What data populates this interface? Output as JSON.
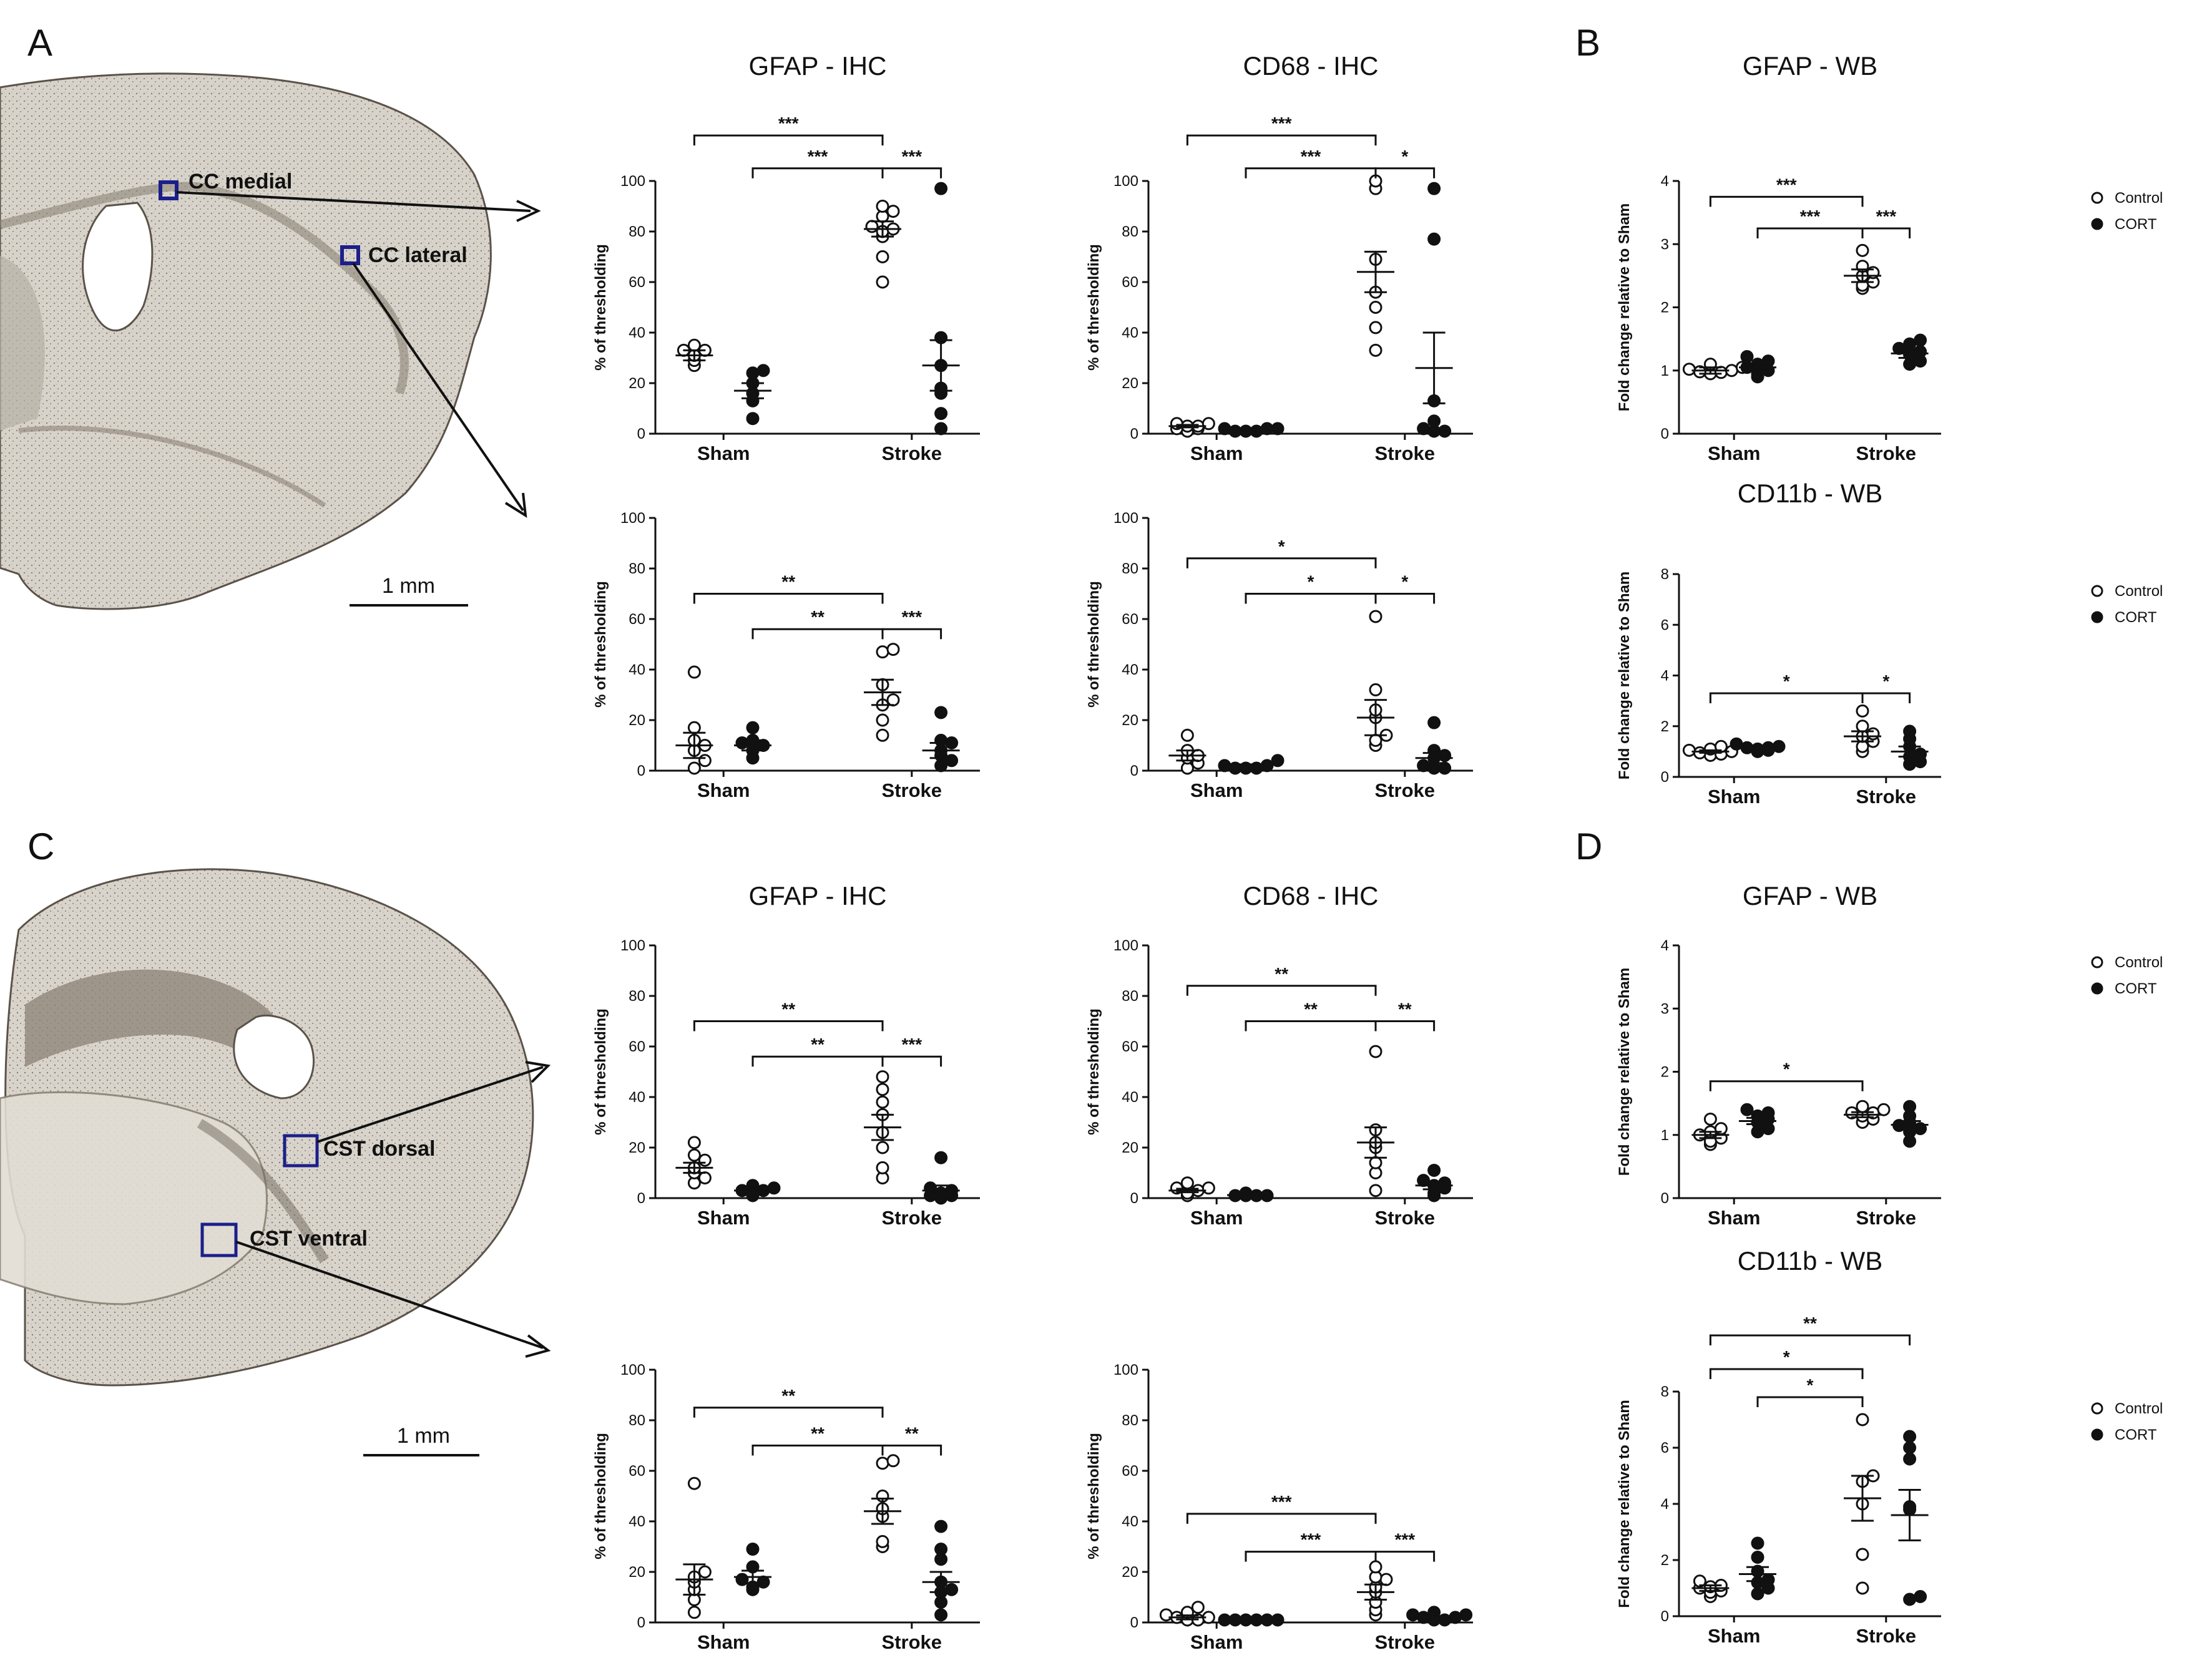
{
  "panel_letters": {
    "a": "A",
    "b": "B",
    "c": "C",
    "d": "D"
  },
  "brain": {
    "top": {
      "cc_medial": "CC medial",
      "cc_lateral": "CC lateral",
      "scale": "1 mm"
    },
    "bottom": {
      "cst_dorsal": "CST dorsal",
      "cst_ventral": "CST ventral",
      "scale": "1 mm"
    }
  },
  "legend": {
    "control": "Control",
    "cort": "CORT"
  },
  "chart_data": [
    {
      "id": "a1",
      "type": "scatter",
      "title": "GFAP - IHC",
      "ylabel": "% of thresholding",
      "ylim": [
        0,
        100
      ],
      "ticks": [
        0,
        20,
        40,
        60,
        80,
        100
      ],
      "categories": [
        "Sham",
        "Stroke"
      ],
      "series": [
        {
          "name": "Sham Control",
          "values": [
            27,
            29,
            31,
            33,
            33,
            35
          ],
          "mean": 31,
          "sem": 2
        },
        {
          "name": "Sham CORT",
          "values": [
            6,
            13,
            16,
            20,
            24,
            25
          ],
          "mean": 17,
          "sem": 3
        },
        {
          "name": "Stroke Control",
          "values": [
            60,
            70,
            78,
            80,
            81,
            82,
            86,
            88,
            90
          ],
          "mean": 81,
          "sem": 3
        },
        {
          "name": "Stroke CORT",
          "values": [
            2,
            8,
            16,
            18,
            27,
            38,
            97
          ],
          "mean": 27,
          "sem": 10
        }
      ],
      "brackets": [
        {
          "from": 0,
          "to": 2,
          "label": "***",
          "y": 118
        },
        {
          "from": 1,
          "to": 2,
          "label": "***",
          "y": 105
        },
        {
          "from": 2,
          "to": 3,
          "label": "***",
          "y": 105
        }
      ]
    },
    {
      "id": "a2",
      "type": "scatter",
      "title": "CD68 - IHC",
      "ylabel": "% of thresholding",
      "ylim": [
        0,
        100
      ],
      "ticks": [
        0,
        20,
        40,
        60,
        80,
        100
      ],
      "categories": [
        "Sham",
        "Stroke"
      ],
      "series": [
        {
          "name": "Sham Control",
          "values": [
            1,
            2,
            2,
            3,
            3,
            4,
            4
          ],
          "mean": 3,
          "sem": 0.5
        },
        {
          "name": "Sham CORT",
          "values": [
            1,
            1,
            1,
            2,
            2,
            2
          ],
          "mean": 1.5,
          "sem": 0.3
        },
        {
          "name": "Stroke Control",
          "values": [
            33,
            42,
            50,
            56,
            69,
            97,
            100
          ],
          "mean": 64,
          "sem": 8
        },
        {
          "name": "Stroke CORT",
          "values": [
            1,
            1,
            2,
            5,
            13,
            77,
            97
          ],
          "mean": 26,
          "sem": 14
        }
      ],
      "brackets": [
        {
          "from": 0,
          "to": 2,
          "label": "***",
          "y": 118
        },
        {
          "from": 1,
          "to": 2,
          "label": "***",
          "y": 105
        },
        {
          "from": 2,
          "to": 3,
          "label": "*",
          "y": 105
        }
      ]
    },
    {
      "id": "b1",
      "type": "scatter",
      "title": "GFAP - WB",
      "ylabel": "Fold change relative to Sham",
      "ylim": [
        0,
        4
      ],
      "ticks": [
        0,
        1,
        2,
        3,
        4
      ],
      "categories": [
        "Sham",
        "Stroke"
      ],
      "series": [
        {
          "name": "Sham Control",
          "values": [
            0.95,
            0.97,
            0.98,
            1.0,
            1.02,
            1.05,
            1.1
          ],
          "mean": 1.0,
          "sem": 0.05
        },
        {
          "name": "Sham CORT",
          "values": [
            0.9,
            0.95,
            1.0,
            1.05,
            1.1,
            1.15,
            1.22
          ],
          "mean": 1.05,
          "sem": 0.06
        },
        {
          "name": "Stroke Control",
          "values": [
            2.3,
            2.35,
            2.4,
            2.5,
            2.55,
            2.65,
            2.9
          ],
          "mean": 2.5,
          "sem": 0.1
        },
        {
          "name": "Stroke CORT",
          "values": [
            1.1,
            1.15,
            1.25,
            1.3,
            1.35,
            1.42,
            1.48
          ],
          "mean": 1.27,
          "sem": 0.07
        }
      ],
      "brackets": [
        {
          "from": 0,
          "to": 2,
          "label": "***",
          "y": 3.75
        },
        {
          "from": 1,
          "to": 2,
          "label": "***",
          "y": 3.25
        },
        {
          "from": 2,
          "to": 3,
          "label": "***",
          "y": 3.25
        }
      ]
    },
    {
      "id": "a3",
      "type": "scatter",
      "title": "",
      "ylabel": "% of thresholding",
      "ylim": [
        0,
        100
      ],
      "ticks": [
        0,
        20,
        40,
        60,
        80,
        100
      ],
      "categories": [
        "Sham",
        "Stroke"
      ],
      "series": [
        {
          "name": "Sham Control",
          "values": [
            1,
            4,
            8,
            10,
            12,
            17,
            39
          ],
          "mean": 10,
          "sem": 5
        },
        {
          "name": "Sham CORT",
          "values": [
            5,
            8,
            10,
            11,
            12,
            17
          ],
          "mean": 10,
          "sem": 2
        },
        {
          "name": "Stroke Control",
          "values": [
            14,
            20,
            26,
            28,
            34,
            47,
            48
          ],
          "mean": 31,
          "sem": 5
        },
        {
          "name": "Stroke CORT",
          "values": [
            2,
            4,
            6,
            8,
            11,
            12,
            23
          ],
          "mean": 8,
          "sem": 3
        }
      ],
      "brackets": [
        {
          "from": 0,
          "to": 2,
          "label": "**",
          "y": 70
        },
        {
          "from": 1,
          "to": 2,
          "label": "**",
          "y": 56
        },
        {
          "from": 2,
          "to": 3,
          "label": "***",
          "y": 56
        }
      ]
    },
    {
      "id": "a4",
      "type": "scatter",
      "title": "",
      "ylabel": "% of thresholding",
      "ylim": [
        0,
        100
      ],
      "ticks": [
        0,
        20,
        40,
        60,
        80,
        100
      ],
      "categories": [
        "Sham",
        "Stroke"
      ],
      "series": [
        {
          "name": "Sham Control",
          "values": [
            1,
            3,
            5,
            6,
            8,
            14
          ],
          "mean": 6,
          "sem": 2
        },
        {
          "name": "Sham CORT",
          "values": [
            1,
            1,
            1,
            2,
            2,
            4
          ],
          "mean": 2,
          "sem": 0.5
        },
        {
          "name": "Stroke Control",
          "values": [
            10,
            12,
            14,
            21,
            24,
            32,
            61
          ],
          "mean": 21,
          "sem": 7
        },
        {
          "name": "Stroke CORT",
          "values": [
            1,
            1,
            2,
            5,
            6,
            8,
            19
          ],
          "mean": 5,
          "sem": 2
        }
      ],
      "brackets": [
        {
          "from": 0,
          "to": 2,
          "label": "*",
          "y": 84
        },
        {
          "from": 1,
          "to": 2,
          "label": "*",
          "y": 70
        },
        {
          "from": 2,
          "to": 3,
          "label": "*",
          "y": 70
        }
      ]
    },
    {
      "id": "b2",
      "type": "scatter",
      "title": "CD11b - WB",
      "ylabel": "Fold change relative to Sham",
      "ylim": [
        0,
        8
      ],
      "ticks": [
        0,
        2,
        4,
        6,
        8
      ],
      "categories": [
        "Sham",
        "Stroke"
      ],
      "series": [
        {
          "name": "Sham Control",
          "values": [
            0.85,
            0.9,
            0.95,
            1.0,
            1.05,
            1.1,
            1.2
          ],
          "mean": 1.0,
          "sem": 0.05
        },
        {
          "name": "Sham CORT",
          "values": [
            1.0,
            1.05,
            1.1,
            1.15,
            1.15,
            1.2,
            1.3
          ],
          "mean": 1.15,
          "sem": 0.05
        },
        {
          "name": "Stroke Control",
          "values": [
            1.0,
            1.2,
            1.4,
            1.6,
            1.7,
            2.0,
            2.6
          ],
          "mean": 1.6,
          "sem": 0.2
        },
        {
          "name": "Stroke CORT",
          "values": [
            0.5,
            0.6,
            0.8,
            0.9,
            1.2,
            1.5,
            1.8
          ],
          "mean": 1.0,
          "sem": 0.2
        }
      ],
      "brackets": [
        {
          "from": 0,
          "to": 2,
          "label": "*",
          "y": 3.3
        },
        {
          "from": 2,
          "to": 3,
          "label": "*",
          "y": 3.3
        }
      ]
    },
    {
      "id": "c1",
      "type": "scatter",
      "title": "GFAP - IHC",
      "ylabel": "% of thresholding",
      "ylim": [
        0,
        100
      ],
      "ticks": [
        0,
        20,
        40,
        60,
        80,
        100
      ],
      "categories": [
        "Sham",
        "Stroke"
      ],
      "series": [
        {
          "name": "Sham Control",
          "values": [
            6,
            8,
            10,
            12,
            15,
            17,
            22
          ],
          "mean": 12,
          "sem": 2
        },
        {
          "name": "Sham CORT",
          "values": [
            1,
            2,
            3,
            3,
            4,
            5
          ],
          "mean": 3,
          "sem": 0.6
        },
        {
          "name": "Stroke Control",
          "values": [
            8,
            12,
            20,
            26,
            33,
            38,
            43,
            48
          ],
          "mean": 28,
          "sem": 5
        },
        {
          "name": "Stroke CORT",
          "values": [
            0,
            1,
            1,
            2,
            3,
            4,
            16
          ],
          "mean": 3,
          "sem": 2
        }
      ],
      "brackets": [
        {
          "from": 0,
          "to": 2,
          "label": "**",
          "y": 70
        },
        {
          "from": 1,
          "to": 2,
          "label": "**",
          "y": 56
        },
        {
          "from": 2,
          "to": 3,
          "label": "***",
          "y": 56
        }
      ]
    },
    {
      "id": "c2",
      "type": "scatter",
      "title": "CD68 - IHC",
      "ylabel": "% of thresholding",
      "ylim": [
        0,
        100
      ],
      "ticks": [
        0,
        20,
        40,
        60,
        80,
        100
      ],
      "categories": [
        "Sham",
        "Stroke"
      ],
      "series": [
        {
          "name": "Sham Control",
          "values": [
            1,
            2,
            3,
            4,
            4,
            6
          ],
          "mean": 3,
          "sem": 0.7
        },
        {
          "name": "Sham CORT",
          "values": [
            1,
            1,
            1,
            1,
            2
          ],
          "mean": 1.2,
          "sem": 0.2
        },
        {
          "name": "Stroke Control",
          "values": [
            3,
            10,
            14,
            20,
            22,
            27,
            58
          ],
          "mean": 22,
          "sem": 6
        },
        {
          "name": "Stroke CORT",
          "values": [
            1,
            2,
            4,
            5,
            6,
            7,
            11
          ],
          "mean": 5,
          "sem": 1.5
        }
      ],
      "brackets": [
        {
          "from": 0,
          "to": 2,
          "label": "**",
          "y": 84
        },
        {
          "from": 1,
          "to": 2,
          "label": "**",
          "y": 70
        },
        {
          "from": 2,
          "to": 3,
          "label": "**",
          "y": 70
        }
      ]
    },
    {
      "id": "d1",
      "type": "scatter",
      "title": "GFAP - WB",
      "ylabel": "Fold change relative to Sham",
      "ylim": [
        0,
        4
      ],
      "ticks": [
        0,
        1,
        2,
        3,
        4
      ],
      "categories": [
        "Sham",
        "Stroke"
      ],
      "series": [
        {
          "name": "Sham Control",
          "values": [
            0.85,
            0.9,
            0.95,
            1.0,
            1.05,
            1.1,
            1.25
          ],
          "mean": 1.0,
          "sem": 0.05
        },
        {
          "name": "Sham CORT",
          "values": [
            1.05,
            1.1,
            1.2,
            1.25,
            1.3,
            1.35,
            1.4
          ],
          "mean": 1.22,
          "sem": 0.05
        },
        {
          "name": "Stroke Control",
          "values": [
            1.2,
            1.25,
            1.3,
            1.35,
            1.35,
            1.4,
            1.45
          ],
          "mean": 1.32,
          "sem": 0.04
        },
        {
          "name": "Stroke CORT",
          "values": [
            0.9,
            1.05,
            1.1,
            1.15,
            1.2,
            1.3,
            1.45
          ],
          "mean": 1.16,
          "sem": 0.06
        }
      ],
      "brackets": [
        {
          "from": 0,
          "to": 2,
          "label": "*",
          "y": 1.85
        }
      ]
    },
    {
      "id": "c3",
      "type": "scatter",
      "title": "",
      "ylabel": "% of thresholding",
      "ylim": [
        0,
        100
      ],
      "ticks": [
        0,
        20,
        40,
        60,
        80,
        100
      ],
      "categories": [
        "Sham",
        "Stroke"
      ],
      "series": [
        {
          "name": "Sham Control",
          "values": [
            4,
            9,
            13,
            16,
            18,
            20,
            55
          ],
          "mean": 17,
          "sem": 6
        },
        {
          "name": "Sham CORT",
          "values": [
            13,
            14,
            16,
            17,
            22,
            29
          ],
          "mean": 18,
          "sem": 2.5
        },
        {
          "name": "Stroke Control",
          "values": [
            30,
            32,
            42,
            45,
            50,
            63,
            64
          ],
          "mean": 44,
          "sem": 5
        },
        {
          "name": "Stroke CORT",
          "values": [
            3,
            8,
            12,
            13,
            16,
            25,
            29,
            38
          ],
          "mean": 16,
          "sem": 4
        }
      ],
      "brackets": [
        {
          "from": 0,
          "to": 2,
          "label": "**",
          "y": 85
        },
        {
          "from": 1,
          "to": 2,
          "label": "**",
          "y": 70
        },
        {
          "from": 2,
          "to": 3,
          "label": "**",
          "y": 70
        }
      ]
    },
    {
      "id": "c4",
      "type": "scatter",
      "title": "",
      "ylabel": "% of thresholding",
      "ylim": [
        0,
        100
      ],
      "ticks": [
        0,
        20,
        40,
        60,
        80,
        100
      ],
      "categories": [
        "Sham",
        "Stroke"
      ],
      "series": [
        {
          "name": "Sham Control",
          "values": [
            1,
            1,
            2,
            2,
            3,
            4,
            6
          ],
          "mean": 2,
          "sem": 0.8
        },
        {
          "name": "Sham CORT",
          "values": [
            1,
            1,
            1,
            1,
            1,
            1
          ],
          "mean": 1,
          "sem": 0.1
        },
        {
          "name": "Stroke Control",
          "values": [
            3,
            5,
            8,
            12,
            14,
            17,
            18,
            22
          ],
          "mean": 12,
          "sem": 3
        },
        {
          "name": "Stroke CORT",
          "values": [
            1,
            1,
            2,
            2,
            3,
            3,
            4
          ],
          "mean": 2,
          "sem": 0.4
        }
      ],
      "brackets": [
        {
          "from": 0,
          "to": 2,
          "label": "***",
          "y": 43
        },
        {
          "from": 1,
          "to": 2,
          "label": "***",
          "y": 28
        },
        {
          "from": 2,
          "to": 3,
          "label": "***",
          "y": 28
        }
      ]
    },
    {
      "id": "d2",
      "type": "scatter",
      "title": "CD11b - WB",
      "ylabel": "Fold change relative to Sham",
      "ylim": [
        0,
        8
      ],
      "ticks": [
        0,
        2,
        4,
        6,
        8
      ],
      "categories": [
        "Sham",
        "Stroke"
      ],
      "series": [
        {
          "name": "Sham Control",
          "values": [
            0.7,
            0.85,
            0.9,
            1.0,
            1.05,
            1.1,
            1.25
          ],
          "mean": 1.0,
          "sem": 0.1
        },
        {
          "name": "Sham CORT",
          "values": [
            0.8,
            1.0,
            1.2,
            1.3,
            1.6,
            2.1,
            2.6
          ],
          "mean": 1.5,
          "sem": 0.25
        },
        {
          "name": "Stroke Control",
          "values": [
            1.0,
            2.2,
            4.0,
            4.8,
            5.0,
            7.0
          ],
          "mean": 4.2,
          "sem": 0.8
        },
        {
          "name": "Stroke CORT",
          "values": [
            0.6,
            0.7,
            3.8,
            3.9,
            5.6,
            6.0,
            6.4
          ],
          "mean": 3.6,
          "sem": 0.9
        }
      ],
      "brackets": [
        {
          "from": 0,
          "to": 2,
          "label": "*",
          "y": 8.8
        },
        {
          "from": 1,
          "to": 2,
          "label": "*",
          "y": 7.8
        },
        {
          "from": 0,
          "to": 3,
          "label": "**",
          "y": 10.0
        }
      ]
    }
  ]
}
